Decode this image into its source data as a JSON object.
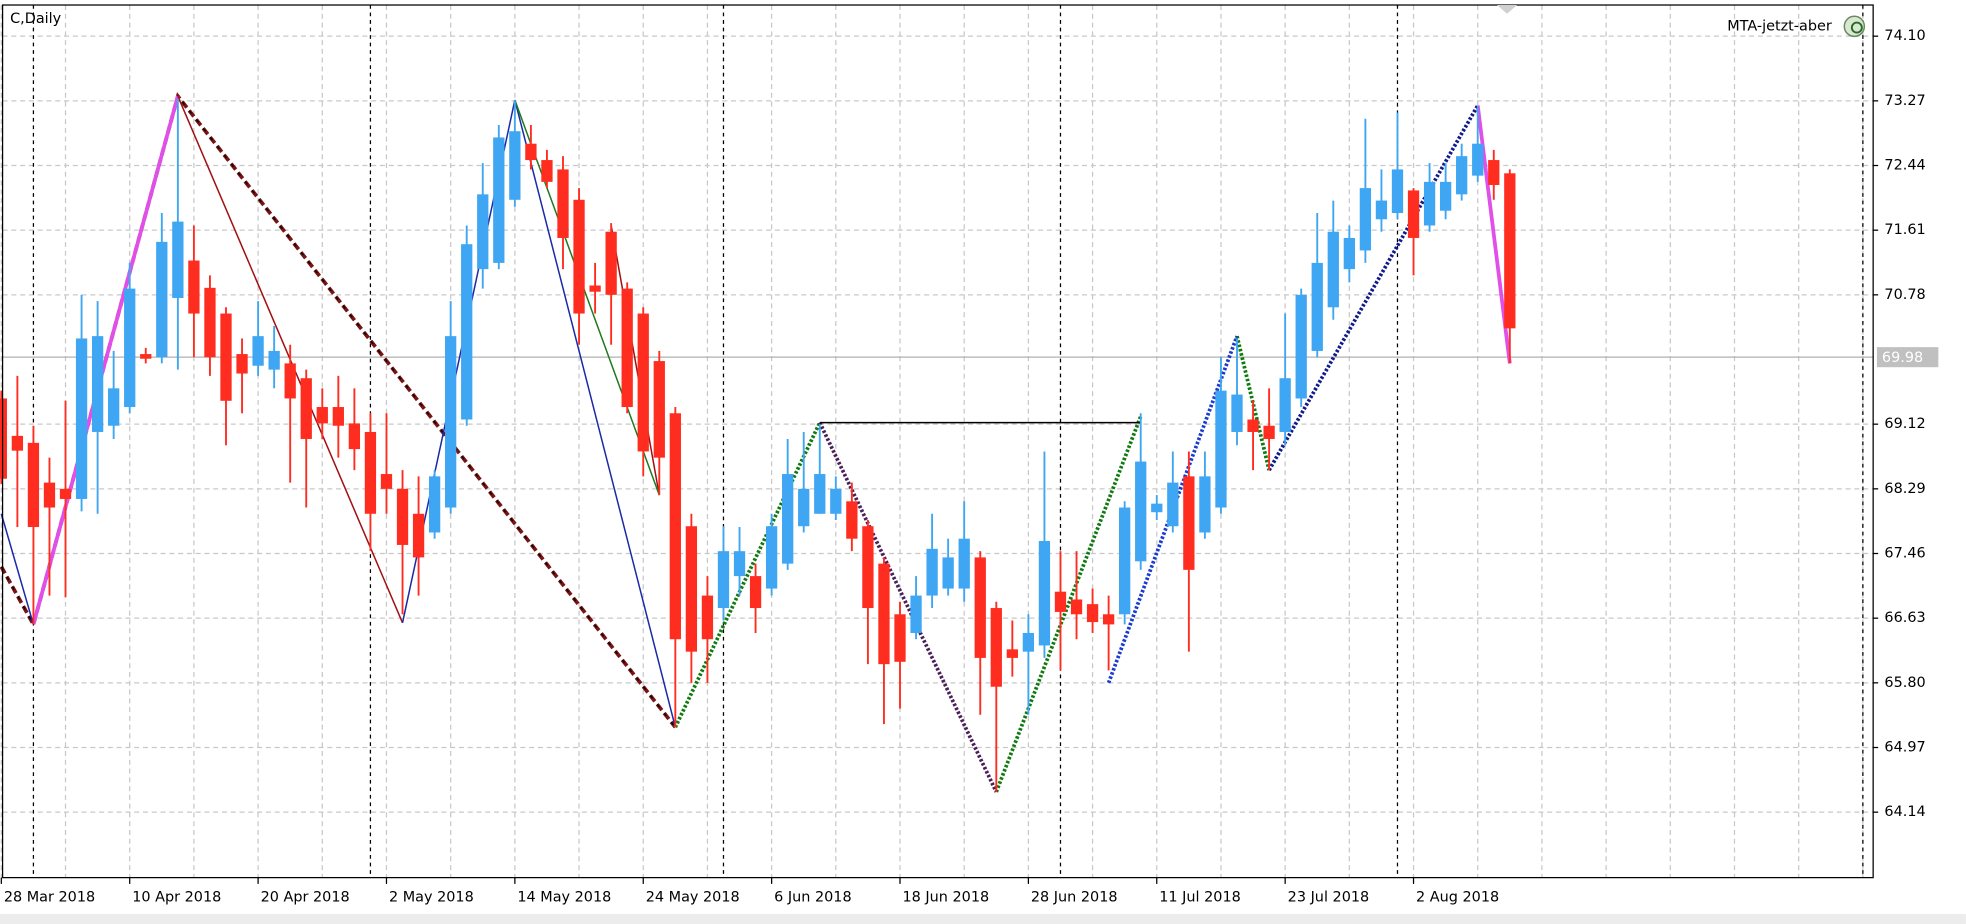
{
  "chart_data": {
    "type": "candlestick",
    "title": "C,Daily",
    "indicator": "MTA-jetzt-aber",
    "bid": 69.98,
    "categories": [
      "28 Mar 2018",
      null,
      null,
      null,
      null,
      null,
      null,
      null,
      "10 Apr 2018",
      null,
      null,
      null,
      null,
      null,
      null,
      null,
      "20 Apr 2018",
      null,
      null,
      null,
      null,
      null,
      null,
      null,
      "2 May 2018",
      null,
      null,
      null,
      null,
      null,
      null,
      null,
      "14 May 2018",
      null,
      null,
      null,
      null,
      null,
      null,
      null,
      "24 May 2018",
      null,
      null,
      null,
      null,
      null,
      null,
      null,
      "6 Jun 2018",
      null,
      null,
      null,
      null,
      null,
      null,
      null,
      "18 Jun 2018",
      null,
      null,
      null,
      null,
      null,
      null,
      null,
      "28 Jun 2018",
      null,
      null,
      null,
      null,
      null,
      null,
      null,
      "11 Jul 2018",
      null,
      null,
      null,
      null,
      null,
      null,
      null,
      "23 Jul 2018",
      null,
      null,
      null,
      null,
      null,
      null,
      null,
      "2 Aug 2018",
      null,
      null,
      null,
      null,
      null,
      null
    ],
    "open": [
      69.45,
      68.97,
      68.88,
      68.37,
      68.29,
      68.16,
      69.02,
      69.1,
      69.34,
      70.02,
      69.98,
      70.74,
      71.22,
      70.87,
      70.54,
      70.02,
      69.87,
      69.82,
      69.9,
      69.71,
      69.34,
      69.34,
      69.13,
      69.02,
      68.48,
      68.29,
      67.97,
      67.73,
      68.05,
      69.18,
      71.11,
      71.19,
      72.0,
      72.72,
      72.51,
      72.39,
      72.0,
      70.9,
      71.59,
      70.86,
      70.54,
      69.93,
      69.26,
      67.81,
      66.92,
      66.76,
      67.17,
      67.17,
      67.01,
      67.33,
      67.81,
      67.97,
      67.97,
      68.13,
      67.81,
      67.33,
      66.68,
      66.44,
      66.92,
      67.01,
      67.01,
      67.41,
      66.76,
      66.23,
      66.2,
      66.28,
      66.97,
      66.87,
      66.81,
      66.68,
      66.68,
      67.36,
      67.99,
      67.81,
      68.45,
      67.73,
      68.05,
      69.02,
      69.18,
      69.1,
      69.02,
      69.45,
      70.06,
      70.62,
      71.11,
      71.35,
      71.75,
      71.83,
      72.12,
      71.67,
      71.86,
      72.07,
      72.31,
      72.51,
      72.34
    ],
    "high": [
      69.55,
      69.74,
      69.1,
      68.69,
      69.42,
      70.78,
      70.7,
      70.06,
      71.19,
      70.1,
      71.83,
      73.3,
      71.67,
      71.03,
      70.62,
      70.22,
      70.7,
      70.38,
      70.14,
      69.82,
      69.58,
      69.74,
      69.58,
      69.26,
      69.26,
      68.53,
      68.45,
      68.53,
      70.7,
      71.67,
      72.47,
      72.96,
      73.28,
      72.96,
      72.64,
      72.56,
      72.15,
      71.19,
      71.7,
      70.94,
      70.62,
      70.06,
      69.34,
      67.97,
      67.17,
      67.81,
      67.8,
      67.33,
      67.97,
      68.93,
      69.02,
      69.12,
      68.45,
      68.37,
      67.89,
      67.41,
      66.84,
      67.17,
      67.97,
      67.65,
      68.13,
      67.49,
      66.84,
      66.6,
      66.68,
      68.77,
      67.49,
      67.49,
      67.01,
      66.92,
      68.13,
      69.26,
      68.21,
      68.77,
      68.77,
      68.77,
      69.98,
      70.22,
      69.42,
      69.58,
      70.54,
      70.86,
      71.83,
      71.99,
      71.67,
      73.04,
      72.39,
      73.12,
      72.15,
      72.47,
      72.47,
      72.72,
      73.2,
      72.64,
      72.39
    ],
    "low": [
      68.35,
      67.8,
      66.55,
      66.92,
      66.9,
      68.0,
      67.97,
      68.93,
      69.26,
      69.9,
      69.9,
      69.82,
      69.98,
      69.74,
      68.85,
      69.26,
      69.74,
      69.58,
      68.37,
      68.05,
      68.93,
      68.69,
      68.53,
      67.49,
      67.97,
      66.68,
      66.92,
      67.65,
      67.97,
      69.1,
      70.86,
      71.11,
      71.91,
      72.39,
      72.15,
      71.11,
      70.14,
      70.54,
      70.14,
      69.26,
      68.45,
      68.21,
      65.23,
      65.8,
      65.8,
      66.6,
      66.92,
      66.44,
      66.92,
      67.25,
      67.73,
      67.97,
      67.89,
      67.49,
      66.04,
      65.27,
      65.47,
      66.36,
      66.76,
      66.92,
      66.84,
      65.39,
      64.4,
      65.88,
      65.39,
      66.12,
      65.96,
      66.36,
      66.44,
      65.96,
      66.55,
      67.25,
      67.89,
      67.73,
      66.2,
      67.65,
      67.97,
      68.85,
      68.53,
      68.53,
      68.85,
      69.34,
      69.98,
      70.46,
      70.94,
      71.19,
      71.59,
      71.75,
      71.03,
      71.59,
      71.75,
      71.99,
      72.23,
      72.0,
      69.9
    ],
    "close": [
      68.42,
      68.78,
      67.8,
      68.05,
      68.16,
      70.22,
      70.25,
      69.58,
      70.86,
      69.96,
      71.46,
      71.72,
      70.54,
      69.98,
      69.42,
      69.77,
      70.25,
      70.06,
      69.45,
      68.93,
      69.13,
      69.1,
      68.8,
      67.97,
      68.29,
      67.57,
      67.41,
      68.45,
      70.25,
      71.43,
      72.07,
      72.8,
      72.88,
      72.51,
      72.23,
      71.51,
      70.54,
      70.82,
      70.78,
      69.34,
      68.77,
      68.69,
      66.36,
      66.2,
      66.36,
      67.49,
      67.49,
      66.76,
      67.81,
      68.48,
      68.29,
      68.48,
      68.29,
      67.65,
      66.76,
      66.04,
      66.07,
      66.92,
      67.52,
      67.41,
      67.65,
      66.12,
      65.75,
      66.12,
      66.44,
      67.62,
      66.71,
      66.68,
      66.58,
      66.55,
      68.05,
      68.64,
      68.1,
      68.37,
      67.25,
      68.45,
      69.55,
      69.5,
      69.02,
      68.93,
      69.71,
      70.78,
      71.19,
      71.59,
      71.51,
      72.15,
      71.99,
      72.39,
      71.51,
      72.23,
      72.23,
      72.56,
      72.72,
      72.19,
      70.35
    ],
    "up_color": "#3ea6f2",
    "down_color": "#ff2d1f",
    "lines": [
      {
        "color": "#7a1414",
        "style": "dashed",
        "bold": true,
        "points": [
          [
            0,
            67.29
          ],
          [
            2,
            66.55
          ],
          [
            11,
            73.33
          ],
          [
            42,
            65.23
          ]
        ]
      },
      {
        "color": "#e050e8",
        "style": "solid",
        "bold": true,
        "points": [
          [
            2,
            66.55
          ],
          [
            11,
            73.33
          ]
        ]
      },
      {
        "color": "#e050e8",
        "style": "solid",
        "bold": true,
        "points": [
          [
            92,
            73.21
          ],
          [
            94,
            69.9
          ]
        ]
      },
      {
        "color": "#a01010",
        "style": "solid",
        "bold": false,
        "points": [
          [
            11,
            73.33
          ],
          [
            25,
            66.57
          ]
        ]
      },
      {
        "color": "#a01010",
        "style": "solid",
        "bold": false,
        "points": [
          [
            38,
            71.67
          ],
          [
            41,
            68.21
          ]
        ]
      },
      {
        "color": "#1a2aa8",
        "style": "solid",
        "bold": false,
        "points": [
          [
            0,
            67.97
          ],
          [
            2,
            66.55
          ]
        ]
      },
      {
        "color": "#1a2aa8",
        "style": "solid",
        "bold": false,
        "points": [
          [
            25,
            66.57
          ],
          [
            32,
            73.28
          ],
          [
            42,
            65.23
          ]
        ]
      },
      {
        "color": "#1f7a1f",
        "style": "solid",
        "bold": false,
        "points": [
          [
            32,
            73.28
          ],
          [
            41,
            68.21
          ]
        ]
      },
      {
        "color": "#0f7a0f",
        "style": "dotted",
        "bold": true,
        "points": [
          [
            42,
            65.23
          ],
          [
            51,
            69.14
          ]
        ]
      },
      {
        "color": "#0f7a0f",
        "style": "dotted",
        "bold": true,
        "points": [
          [
            62,
            64.4
          ],
          [
            71,
            69.22
          ]
        ]
      },
      {
        "color": "#0f7a0f",
        "style": "dotted",
        "bold": true,
        "points": [
          [
            77,
            70.25
          ],
          [
            79,
            68.53
          ]
        ]
      },
      {
        "color": "#4a1f5a",
        "style": "dotted",
        "bold": true,
        "points": [
          [
            51,
            69.14
          ],
          [
            62,
            64.4
          ]
        ]
      },
      {
        "color": "#000000",
        "style": "solid",
        "bold": false,
        "points": [
          [
            51,
            69.14
          ],
          [
            71,
            69.14
          ]
        ]
      },
      {
        "color": "#1a3ad0",
        "style": "dotted",
        "bold": true,
        "points": [
          [
            69,
            65.8
          ],
          [
            77,
            70.25
          ]
        ]
      },
      {
        "color": "#101a8a",
        "style": "dotted",
        "bold": true,
        "points": [
          [
            79,
            68.53
          ],
          [
            92,
            73.21
          ]
        ]
      }
    ],
    "period_separators": [
      2,
      23,
      45,
      66,
      87,
      116
    ],
    "ylim": [
      63.3,
      74.5
    ],
    "yticks": [
      {
        "value": 74.1,
        "label": "74.10"
      },
      73.27,
      72.44,
      71.61,
      70.78,
      69.12,
      68.29,
      67.46,
      66.63,
      {
        "value": 65.8,
        "label": "65.80"
      },
      64.97,
      64.14
    ],
    "grid": true
  }
}
